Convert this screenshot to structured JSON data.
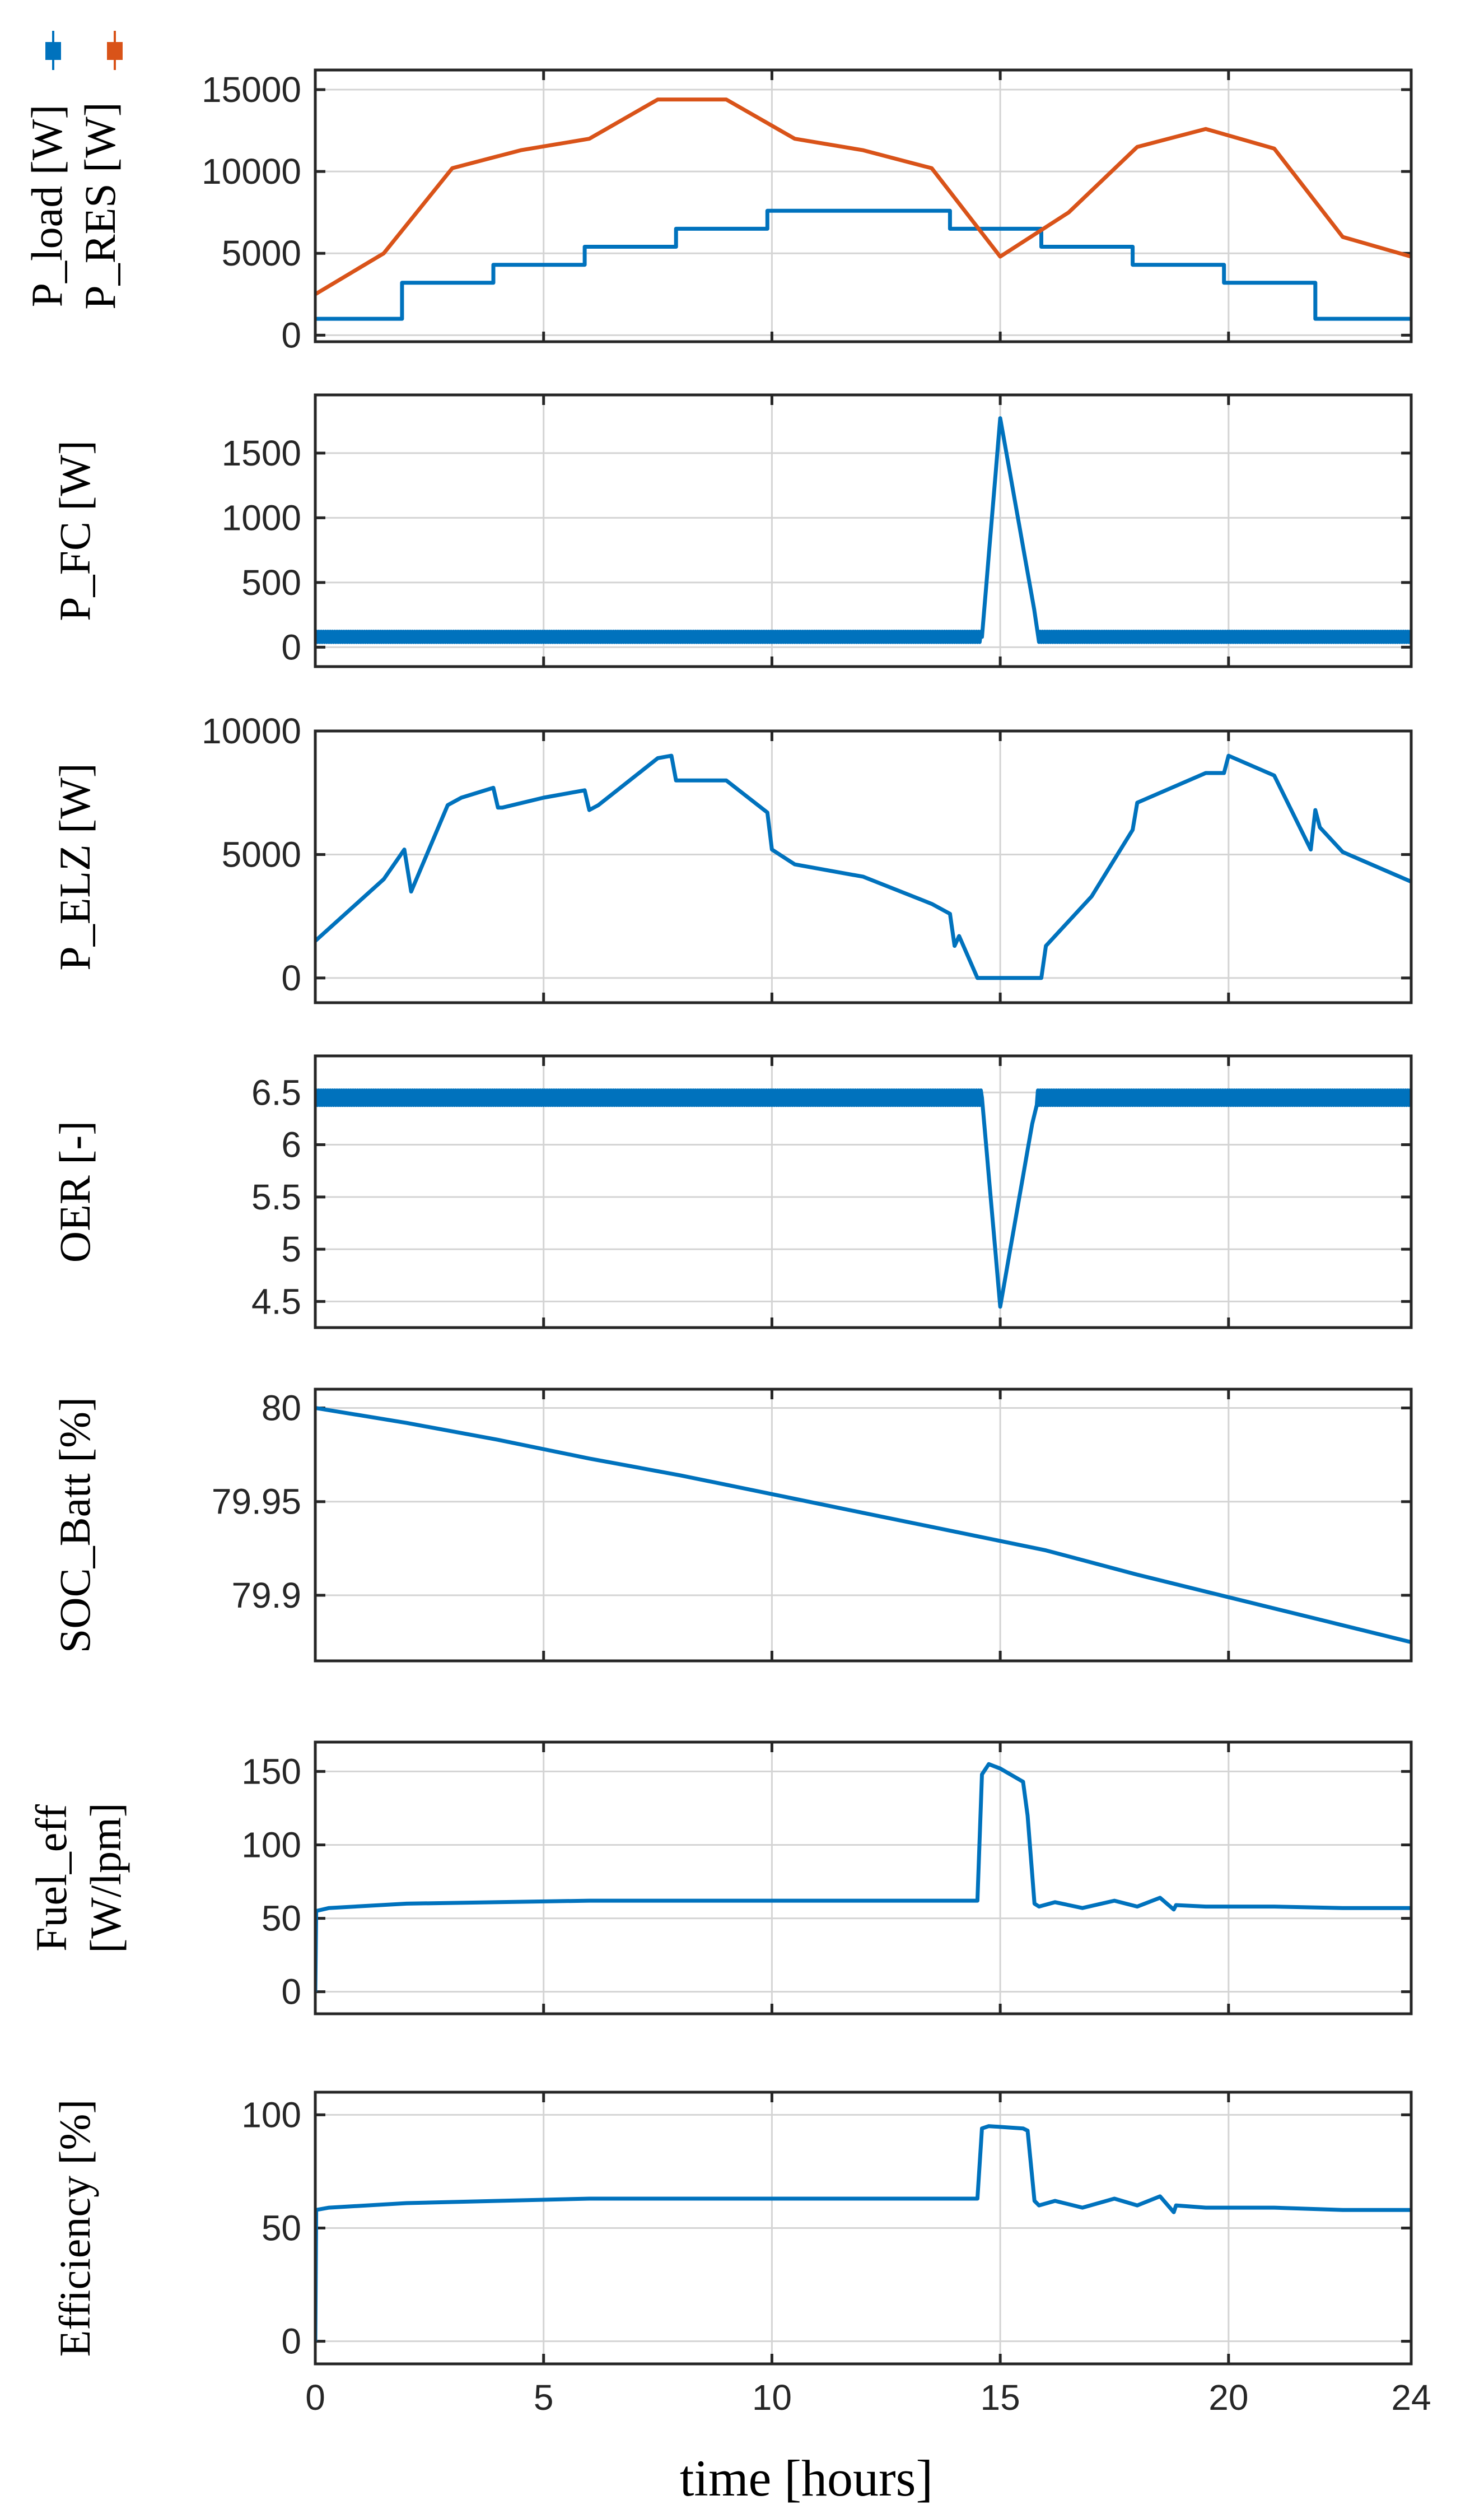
{
  "chart_data": {
    "type": "line",
    "xlabel": "time [hours]",
    "xlim": [
      0,
      24
    ],
    "xticks": [
      0,
      5,
      10,
      15,
      20,
      24
    ],
    "colors": {
      "primary": "#0072BD",
      "secondary": "#D95319"
    },
    "legend_icons": [
      "box-plot-icon-blue",
      "box-plot-icon-orange"
    ],
    "panels": [
      {
        "ylabel_lines": [
          "P_load [W]",
          "P_RES [W]"
        ],
        "ylim": [
          -400,
          16200
        ],
        "yticks": [
          0,
          5000,
          10000,
          15000
        ],
        "series": [
          {
            "name": "P_load [W]",
            "color": "#0072BD",
            "x": [
              0,
              1.9,
              1.9,
              3.9,
              3.9,
              5.9,
              5.9,
              7.9,
              7.9,
              9.9,
              9.9,
              13.9,
              13.9,
              15.9,
              15.9,
              17.9,
              17.9,
              19.9,
              19.9,
              21.9,
              21.9,
              24
            ],
            "y": [
              1000,
              1000,
              3200,
              3200,
              4300,
              4300,
              5400,
              5400,
              6500,
              6500,
              7600,
              7600,
              6500,
              6500,
              5400,
              5400,
              4300,
              4300,
              3200,
              3200,
              1000,
              1000
            ]
          },
          {
            "name": "P_RES [W]",
            "color": "#D95319",
            "x": [
              0,
              1.5,
              3,
              4.5,
              6,
              7.5,
              9,
              10.5,
              12,
              13.5,
              15,
              16.5,
              18,
              19.5,
              21,
              22.5,
              24
            ],
            "y": [
              2500,
              5000,
              10200,
              11300,
              12000,
              14400,
              14400,
              12000,
              11300,
              10200,
              4800,
              7500,
              11500,
              12600,
              11400,
              6000,
              4800
            ]
          }
        ]
      },
      {
        "ylabel_lines": [
          "P_FC [W]"
        ],
        "ylim": [
          -150,
          1950
        ],
        "yticks": [
          0,
          500,
          1000,
          1500
        ],
        "series": [
          {
            "name": "P_FC [W]",
            "color": "#0072BD",
            "noise": 40,
            "x": [
              0,
              14.6,
              15.0,
              15.85,
              24
            ],
            "y": [
              80,
              80,
              1770,
              80,
              80
            ]
          }
        ]
      },
      {
        "ylabel_lines": [
          "P_ELZ [W]"
        ],
        "ylim": [
          -1000,
          10000
        ],
        "yticks": [
          0,
          5000,
          10000
        ],
        "series": [
          {
            "name": "P_ELZ [W]",
            "color": "#0072BD",
            "x": [
              0,
              1.5,
              1.8,
              1.95,
              2.1,
              2.9,
              3.2,
              3.9,
              4.0,
              4.1,
              5.0,
              5.9,
              6.0,
              6.2,
              7.5,
              7.8,
              7.9,
              9.0,
              9.9,
              10.0,
              10.5,
              12.0,
              13.5,
              13.9,
              14.0,
              14.1,
              14.5,
              15.0,
              15.4,
              15.9,
              16.0,
              17.0,
              17.9,
              18.0,
              19.5,
              19.9,
              20.0,
              21.0,
              21.8,
              21.9,
              22.0,
              22.5,
              24
            ],
            "y": [
              1500,
              4000,
              4800,
              5200,
              3500,
              7000,
              7300,
              7700,
              6900,
              6900,
              7300,
              7600,
              6800,
              7000,
              8900,
              9000,
              8000,
              8000,
              6700,
              5200,
              4600,
              4100,
              3000,
              2600,
              1300,
              1700,
              0,
              0,
              0,
              0,
              1300,
              3300,
              6000,
              7100,
              8300,
              8300,
              9000,
              8200,
              5200,
              6800,
              6100,
              5100,
              3900
            ]
          }
        ]
      },
      {
        "ylabel_lines": [
          "OER [-]"
        ],
        "ylim": [
          4.25,
          6.85
        ],
        "yticks": [
          4.5,
          5,
          5.5,
          6,
          6.5
        ],
        "series": [
          {
            "name": "OER [-]",
            "color": "#0072BD",
            "noise": 0.07,
            "x": [
              0,
              14.6,
              15.0,
              15.8,
              24
            ],
            "y": [
              6.45,
              6.45,
              4.45,
              6.45,
              6.45
            ]
          }
        ]
      },
      {
        "ylabel_lines": [
          "SOC_Batt [%]"
        ],
        "ylim": [
          79.865,
          80.01
        ],
        "yticks": [
          79.9,
          79.95,
          80
        ],
        "series": [
          {
            "name": "SOC_Batt [%]",
            "color": "#0072BD",
            "x": [
              0,
              2,
              4,
              6,
              8,
              10,
              12,
              14,
              15,
              16,
              18,
              20,
              22,
              24
            ],
            "y": [
              80.0,
              79.992,
              79.983,
              79.973,
              79.964,
              79.954,
              79.944,
              79.934,
              79.929,
              79.924,
              79.911,
              79.899,
              79.887,
              79.875
            ]
          }
        ]
      },
      {
        "ylabel_lines": [
          "Fuel_eff",
          "[W/lpm]"
        ],
        "ylim": [
          -15,
          170
        ],
        "yticks": [
          0,
          50,
          100,
          150
        ],
        "series": [
          {
            "name": "Fuel_eff [W/lpm]",
            "color": "#0072BD",
            "x": [
              0,
              0.02,
              0.3,
              2,
              4,
              6,
              8,
              10,
              12,
              14.5,
              14.6,
              14.75,
              15.0,
              15.5,
              15.6,
              15.75,
              15.85,
              16.2,
              16.8,
              17.5,
              18.0,
              18.5,
              18.8,
              18.85,
              19.5,
              21,
              22.5,
              24
            ],
            "y": [
              0,
              55,
              57,
              60,
              61,
              62,
              62,
              62,
              62,
              62,
              148,
              155,
              152,
              143,
              120,
              60,
              58,
              61,
              57,
              62,
              58,
              64,
              56,
              59,
              58,
              58,
              57,
              57
            ]
          }
        ]
      },
      {
        "ylabel_lines": [
          "Efficiency [%]"
        ],
        "ylim": [
          -10,
          110
        ],
        "yticks": [
          0,
          50,
          100
        ],
        "series": [
          {
            "name": "Efficiency [%]",
            "color": "#0072BD",
            "x": [
              0,
              0.02,
              0.3,
              2,
              4,
              6,
              8,
              10,
              12,
              14.5,
              14.6,
              14.75,
              15.5,
              15.6,
              15.75,
              15.85,
              16.2,
              16.8,
              17.5,
              18.0,
              18.5,
              18.8,
              18.85,
              19.5,
              21,
              22.5,
              24
            ],
            "y": [
              0,
              58,
              59,
              61,
              62,
              63,
              63,
              63,
              63,
              63,
              94,
              95,
              94,
              93,
              62,
              60,
              62,
              59,
              63,
              60,
              64,
              57,
              60,
              59,
              59,
              58,
              58
            ]
          }
        ]
      }
    ]
  }
}
